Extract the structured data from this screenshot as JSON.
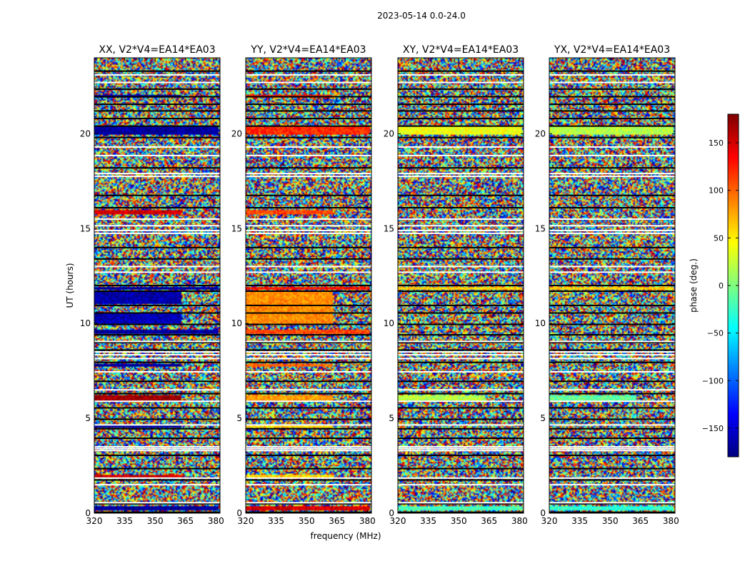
{
  "chart_data": {
    "type": "heatmap",
    "suptitle": "2023-05-14 0.0-24.0",
    "xlabel": "frequency (MHz)",
    "ylabel": "UT (hours)",
    "xlim": [
      320,
      382
    ],
    "ylim": [
      0,
      24
    ],
    "xticks": [
      320,
      335,
      350,
      365,
      380
    ],
    "yticks": [
      0,
      5,
      10,
      15,
      20
    ],
    "panels": [
      {
        "title": "XX, V2*V4=EA14*EA03",
        "bias": [
          {
            "t0": 0.15,
            "t1": 0.35,
            "f1": 381,
            "v": -170
          },
          {
            "t0": 1.9,
            "t1": 2.05,
            "f1": 363,
            "v": 150
          },
          {
            "t0": 4.5,
            "t1": 4.65,
            "f1": 363,
            "v": -170
          },
          {
            "t0": 5.95,
            "t1": 6.2,
            "f1": 363,
            "v": 170
          },
          {
            "t0": 7.7,
            "t1": 7.85,
            "f1": 363,
            "v": -170
          },
          {
            "t0": 9.45,
            "t1": 9.7,
            "f1": 381,
            "v": -170
          },
          {
            "t0": 10.0,
            "t1": 10.55,
            "f1": 363,
            "v": -160
          },
          {
            "t0": 11.0,
            "t1": 11.7,
            "f1": 363,
            "v": -165
          },
          {
            "t0": 11.75,
            "t1": 11.95,
            "f1": 381,
            "v": -170
          },
          {
            "t0": 15.75,
            "t1": 15.95,
            "f1": 363,
            "v": 150
          },
          {
            "t0": 19.95,
            "t1": 20.4,
            "f1": 381,
            "v": -170
          },
          {
            "t0": 21.9,
            "t1": 22.05,
            "f1": 363,
            "v": -170
          }
        ]
      },
      {
        "title": "YY, V2*V4=EA14*EA03",
        "bias": [
          {
            "t0": 0.15,
            "t1": 0.35,
            "f1": 381,
            "v": 150
          },
          {
            "t0": 1.9,
            "t1": 2.05,
            "f1": 363,
            "v": 60
          },
          {
            "t0": 4.5,
            "t1": 4.65,
            "f1": 363,
            "v": 60
          },
          {
            "t0": 5.95,
            "t1": 6.2,
            "f1": 363,
            "v": 80
          },
          {
            "t0": 7.7,
            "t1": 7.85,
            "f1": 363,
            "v": 100
          },
          {
            "t0": 9.45,
            "t1": 9.7,
            "f1": 381,
            "v": 110
          },
          {
            "t0": 10.0,
            "t1": 11.7,
            "f1": 363,
            "v": 85
          },
          {
            "t0": 11.75,
            "t1": 11.95,
            "f1": 381,
            "v": 130
          },
          {
            "t0": 15.75,
            "t1": 15.95,
            "f1": 363,
            "v": 110
          },
          {
            "t0": 19.95,
            "t1": 20.4,
            "f1": 381,
            "v": 120
          },
          {
            "t0": 21.9,
            "t1": 22.05,
            "f1": 363,
            "v": 130
          }
        ]
      },
      {
        "title": "XY, V2*V4=EA14*EA03",
        "bias": [
          {
            "t0": 0.15,
            "t1": 0.35,
            "f1": 381,
            "v": -20
          },
          {
            "t0": 5.95,
            "t1": 6.2,
            "f1": 363,
            "v": 20
          },
          {
            "t0": 11.75,
            "t1": 11.95,
            "f1": 381,
            "v": 60
          },
          {
            "t0": 19.95,
            "t1": 20.4,
            "f1": 381,
            "v": 40
          }
        ]
      },
      {
        "title": "YX, V2*V4=EA14*EA03",
        "bias": [
          {
            "t0": 0.15,
            "t1": 0.35,
            "f1": 381,
            "v": -30
          },
          {
            "t0": 5.95,
            "t1": 6.2,
            "f1": 363,
            "v": -10
          },
          {
            "t0": 11.75,
            "t1": 11.95,
            "f1": 381,
            "v": 60
          },
          {
            "t0": 19.95,
            "t1": 20.4,
            "f1": 381,
            "v": 20
          }
        ]
      }
    ],
    "flagged_hours_black": [
      0.05,
      0.5,
      1.75,
      2.35,
      3.05,
      3.95,
      4.45,
      4.95,
      5.55,
      6.3,
      6.95,
      7.95,
      8.6,
      9.0,
      9.4,
      9.95,
      10.55,
      10.95,
      11.7,
      12.0,
      13.4,
      14.0,
      16.1,
      16.75,
      18.2,
      19.8,
      20.4,
      20.8,
      21.2,
      21.55,
      21.95,
      22.35,
      23.3
    ],
    "flagged_hours_white": [
      0.55,
      1.5,
      1.85,
      3.3,
      3.4,
      3.5,
      4.65,
      5.9,
      6.5,
      7.45,
      8.15,
      8.35,
      8.5,
      9.05,
      12.7,
      13.0,
      14.75,
      14.9,
      15.15,
      15.5,
      17.75,
      17.9,
      18.85,
      19.3,
      22.7,
      23.1
    ],
    "colorbar": {
      "label": "phase (deg.)",
      "range": [
        -180,
        180
      ],
      "ticks": [
        150,
        100,
        50,
        0,
        -50,
        -100,
        -150
      ],
      "tick_labels": [
        "150",
        "100",
        "50",
        "0",
        "−50",
        "−100",
        "−150"
      ]
    }
  }
}
